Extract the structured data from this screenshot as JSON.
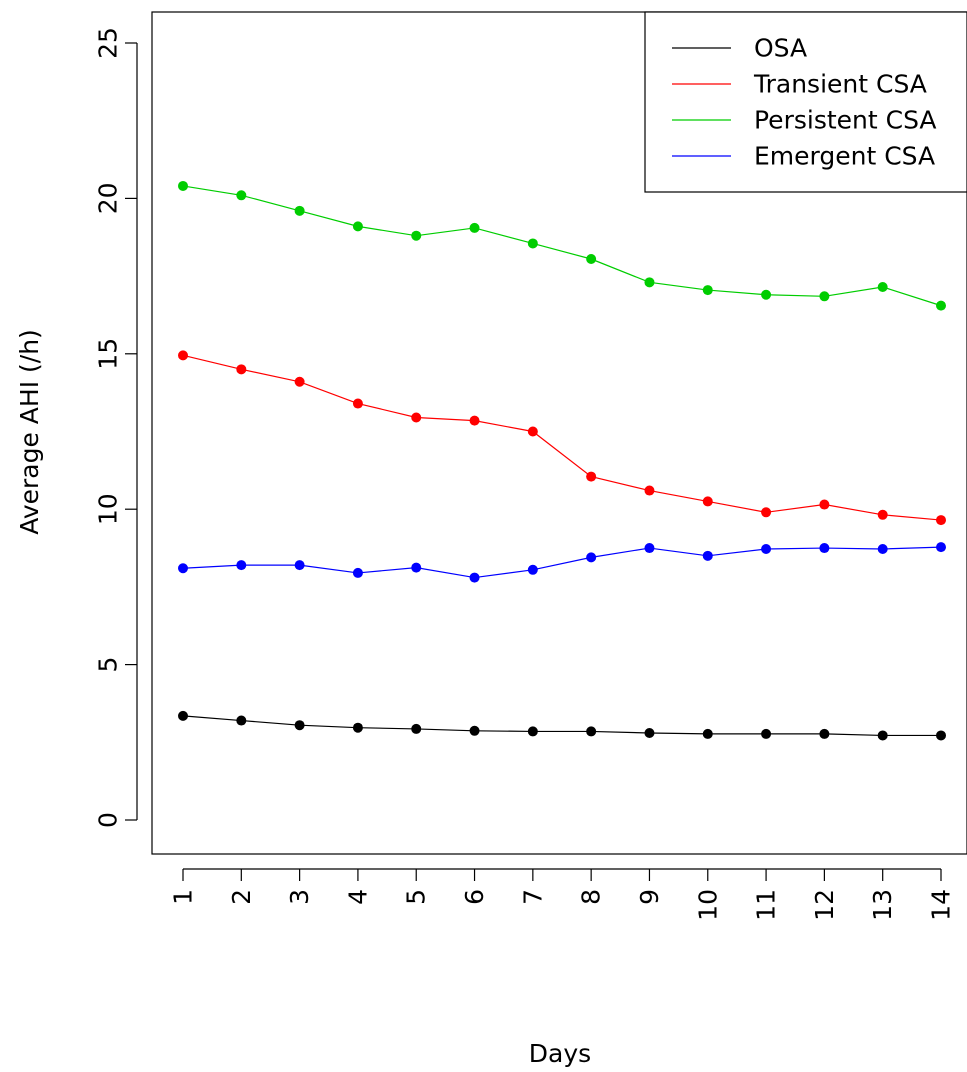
{
  "chart_data": {
    "type": "line",
    "title": "",
    "xlabel": "Days",
    "ylabel": "Average AHI (/h)",
    "x": [
      1,
      2,
      3,
      4,
      5,
      6,
      7,
      8,
      9,
      10,
      11,
      12,
      13,
      14
    ],
    "x_tick_labels": [
      "1",
      "2",
      "3",
      "4",
      "5",
      "6",
      "7",
      "8",
      "9",
      "10",
      "11",
      "12",
      "13",
      "14"
    ],
    "y_ticks": [
      0,
      5,
      10,
      15,
      20,
      25
    ],
    "y_tick_labels": [
      "0",
      "5",
      "10",
      "15",
      "20",
      "25"
    ],
    "ylim": [
      -1.0,
      26.0
    ],
    "xlim": [
      0.5,
      14.5
    ],
    "grid": false,
    "legend_position": "top-right",
    "series": [
      {
        "name": "OSA",
        "color": "#000000",
        "values": [
          3.35,
          3.2,
          3.05,
          2.97,
          2.93,
          2.87,
          2.85,
          2.85,
          2.8,
          2.77,
          2.77,
          2.77,
          2.72,
          2.72
        ]
      },
      {
        "name": "Transient CSA",
        "color": "#ff0000",
        "values": [
          14.95,
          14.5,
          14.1,
          13.4,
          12.95,
          12.85,
          12.5,
          11.05,
          10.6,
          10.25,
          9.9,
          10.15,
          9.82,
          9.65
        ]
      },
      {
        "name": "Persistent CSA",
        "color": "#00cd00",
        "values": [
          20.4,
          20.1,
          19.6,
          19.1,
          18.8,
          19.05,
          18.55,
          18.05,
          17.3,
          17.05,
          16.9,
          16.85,
          17.15,
          16.55
        ]
      },
      {
        "name": "Emergent CSA",
        "color": "#0000ff",
        "values": [
          8.1,
          8.2,
          8.2,
          7.95,
          8.12,
          7.8,
          8.05,
          8.45,
          8.75,
          8.5,
          8.72,
          8.75,
          8.72,
          8.78
        ]
      }
    ]
  }
}
